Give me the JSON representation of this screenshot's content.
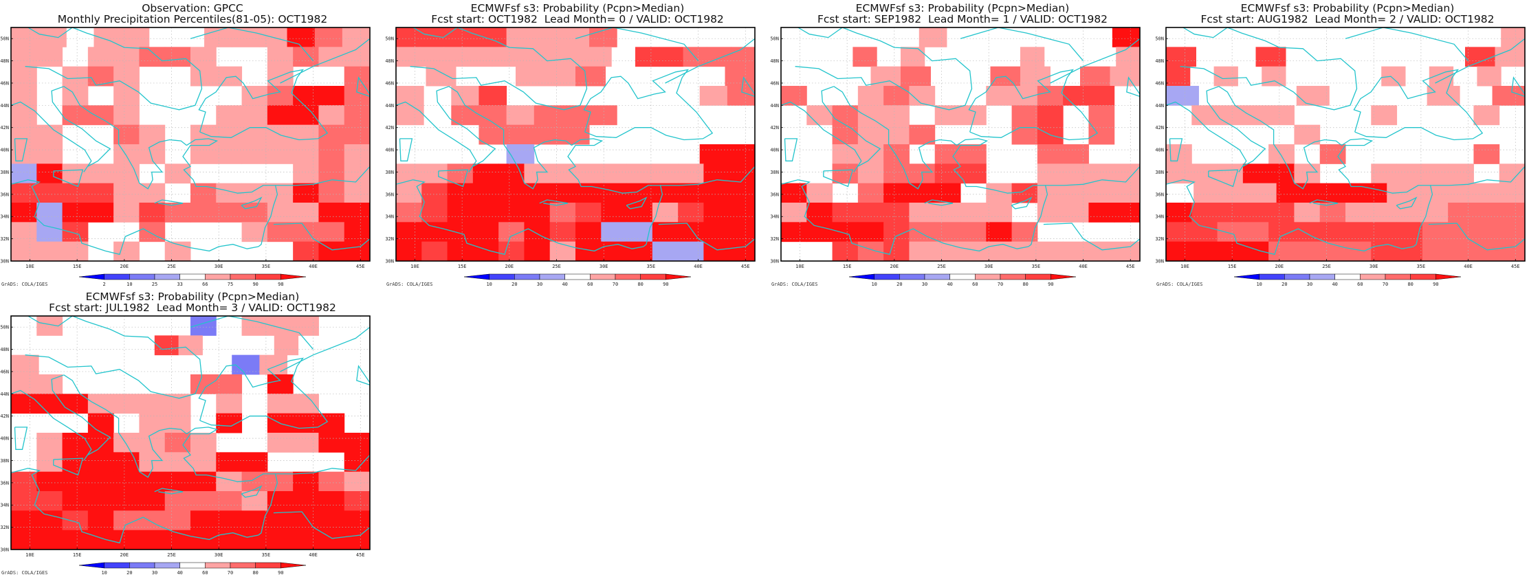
{
  "credit": "GrADS: COLA/IGES",
  "lat_labels": [
    "30N",
    "32N",
    "34N",
    "36N",
    "38N",
    "40N",
    "42N",
    "44N",
    "46N",
    "48N",
    "50N"
  ],
  "lon_labels": [
    "10E",
    "15E",
    "20E",
    "25E",
    "30E",
    "35E",
    "40E",
    "45E"
  ],
  "palette": {
    "dark_blue": "#0000ff",
    "blue": "#4343fb",
    "med_blue": "#7b7bf6",
    "light_blue": "#a7a7f3",
    "white": "#ffffff",
    "light_red": "#ffa4a4",
    "red": "#ff6c6c",
    "med_red": "#ff4040",
    "dark_red": "#ff1010",
    "coast": "#22c4cc"
  },
  "chart_data": [
    {
      "type": "heatmap",
      "title": "Observation: GPCC",
      "subtitle": "Monthly Precipitation Percentiles(81-05): OCT1982",
      "colorbar_levels": [
        "2",
        "10",
        "25",
        "33",
        "66",
        "75",
        "90",
        "98"
      ],
      "x_range_deg": [
        8,
        46
      ],
      "y_range_deg": [
        30,
        51
      ],
      "cell_deg": 2.5,
      "grid": [
        "2101100122r32",
        "22012331001312",
        "20231002101003",
        "10201000013553",
        "10331000215523",
        "12003102112233",
        "11001201222232",
        "75121010000232",
        "44442103222532",
        "57552433332155",
        "27400300023336",
        "11102010000466"
      ]
    },
    {
      "type": "heatmap",
      "title": "ECMWFsf s3: Probability (Pcpn>Median)",
      "subtitle": "Fcst start: OCT1982  Lead Month= 0 / VALID: OCT1982",
      "colorbar_levels": [
        "10",
        "20",
        "30",
        "40",
        "60",
        "70",
        "80",
        "90"
      ],
      "x_range_deg": [
        8,
        46
      ],
      "y_range_deg": [
        30,
        51
      ],
      "cell_deg": 2.5,
      "grid": [
        "4444212300000",
        "222222221044333",
        "020012300003",
        "1014000000023",
        "1033233300000",
        "0003333000000",
        "0000700000055",
        "12366221111155",
        "14666555665555",
        "34555534652455",
        "55553545776666",
        "54654526567766"
      ]
    },
    {
      "type": "heatmap",
      "title": "ECMWFsf s3: Probability (Pcpn>Median)",
      "subtitle": "Fcst start: SEP1982  Lead Month= 1 / VALID: OCT1982",
      "colorbar_levels": [
        "10",
        "20",
        "30",
        "40",
        "60",
        "70",
        "80",
        "90"
      ],
      "x_range_deg": [
        8,
        46
      ],
      "y_range_deg": [
        30,
        51
      ],
      "cell_deg": 2.5,
      "grid": [
        "0000020000005",
        "000302000020002",
        "000230031031",
        "30023100123440",
        "01312011034030",
        "00312300034030",
        "00213033003300",
        "00323344001222",
        "51036550141112",
        "15444222201155",
        "56664333530000",
        "00434222211222"
      ]
    },
    {
      "type": "heatmap",
      "title": "ECMWFsf s3: Probability (Pcpn>Median)",
      "subtitle": "Fcst start: AUG1982  Lead Month= 2 / VALID: OCT1982",
      "colorbar_levels": [
        "10",
        "20",
        "30",
        "40",
        "60",
        "70",
        "80",
        "90"
      ],
      "x_range_deg": [
        8,
        46
      ],
      "y_range_deg": [
        30,
        51
      ],
      "cell_deg": 2.5,
      "grid": [
        "000000000000002",
        "400400000042",
        "401010000101020",
        "70001000103",
        "01121000100020",
        "00000200000000",
        "20001030000030",
        "12255100222202",
        "0111555511111",
        "54444131111333",
        "44334444443333",
        "55663333443333"
      ]
    },
    {
      "type": "heatmap",
      "title": "ECMWFsf s3: Probability (Pcpn>Median)",
      "subtitle": "Fcst start: JUL1982  Lead Month= 3 / VALID: OCT1982",
      "colorbar_levels": [
        "10",
        "20",
        "30",
        "40",
        "60",
        "70",
        "80",
        "90"
      ],
      "x_range_deg": [
        8,
        46
      ],
      "y_range_deg": [
        30,
        51
      ],
      "cell_deg": 2.5,
      "grid": [
        "01000008011100",
        "000000410002000",
        "1000000082000",
        "21000003305000",
        "55511110201100",
        "00050110505550",
        "01551131002255",
        "02666111550005",
        "45556665233532",
        "44666633325554",
        "55453335555556",
        "66556556566666"
      ]
    }
  ]
}
